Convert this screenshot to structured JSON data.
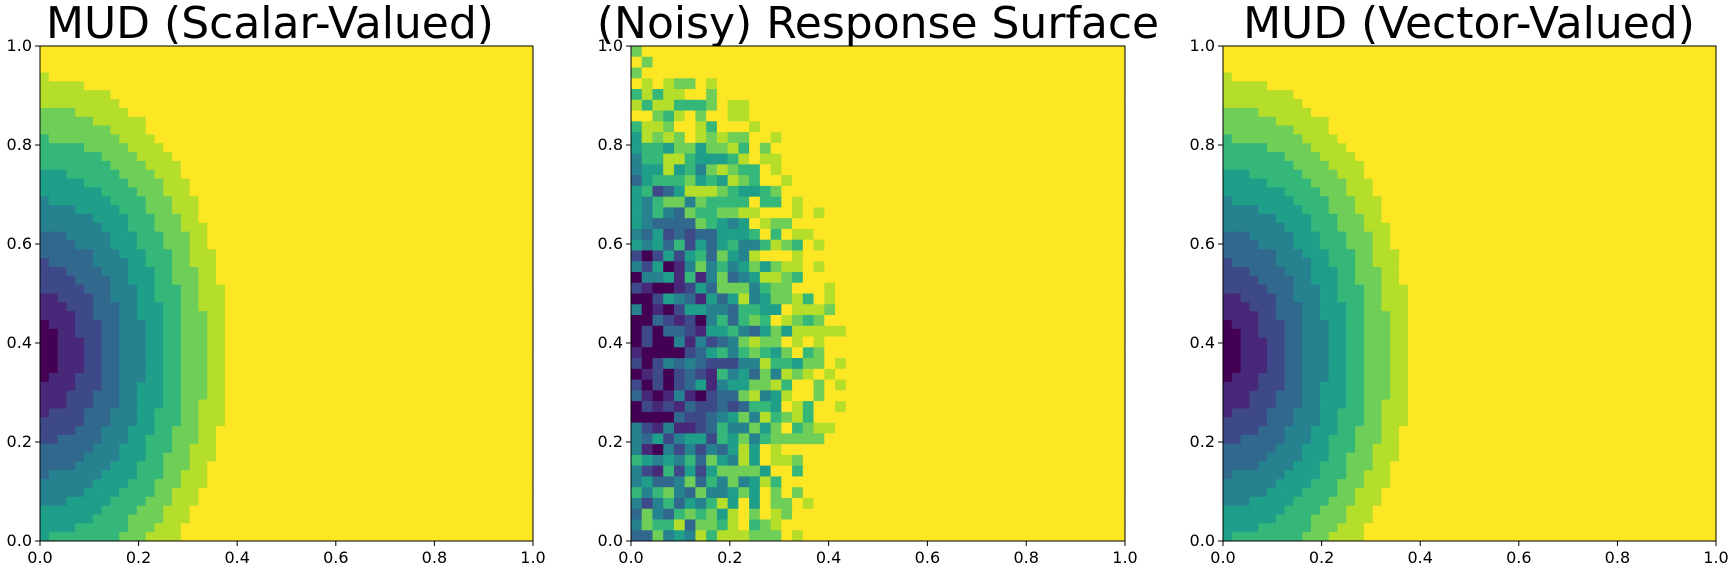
{
  "figure": {
    "colormap": [
      "#440154",
      "#482878",
      "#3e4989",
      "#31688e",
      "#26828e",
      "#1f9e89",
      "#35b779",
      "#6ece58",
      "#b5de2b",
      "#fde725"
    ]
  },
  "chart_data": [
    {
      "type": "contour",
      "title": "MUD (Scalar-Valued)",
      "xlim": [
        0.0,
        1.0
      ],
      "ylim": [
        0.0,
        1.0
      ],
      "xticks": [
        "0.0",
        "0.2",
        "0.4",
        "0.6",
        "0.8",
        "1.0"
      ],
      "yticks": [
        "0.0",
        "0.2",
        "0.4",
        "0.6",
        "0.8",
        "1.0"
      ],
      "colormap": "viridis",
      "surface": {
        "center": [
          0.0,
          0.38
        ],
        "scale_x": 0.42,
        "scale_y": 0.62,
        "noise": 0
      }
    },
    {
      "type": "contour",
      "title": "(Noisy) Response Surface",
      "xlim": [
        0.0,
        1.0
      ],
      "ylim": [
        0.0,
        1.0
      ],
      "xticks": [
        "0.0",
        "0.2",
        "0.4",
        "0.6",
        "0.8",
        "1.0"
      ],
      "yticks": [
        "0.0",
        "0.2",
        "0.4",
        "0.6",
        "0.8",
        "1.0"
      ],
      "colormap": "viridis",
      "surface": {
        "center": [
          0.0,
          0.38
        ],
        "scale_x": 0.42,
        "scale_y": 0.62,
        "noise": 1
      }
    },
    {
      "type": "contour",
      "title": "MUD (Vector-Valued)",
      "xlim": [
        0.0,
        1.0
      ],
      "ylim": [
        0.0,
        1.0
      ],
      "xticks": [
        "0.0",
        "0.2",
        "0.4",
        "0.6",
        "0.8",
        "1.0"
      ],
      "yticks": [
        "0.0",
        "0.2",
        "0.4",
        "0.6",
        "0.8",
        "1.0"
      ],
      "colormap": "viridis",
      "surface": {
        "center": [
          0.0,
          0.38
        ],
        "scale_x": 0.42,
        "scale_y": 0.62,
        "noise": 0
      }
    }
  ]
}
